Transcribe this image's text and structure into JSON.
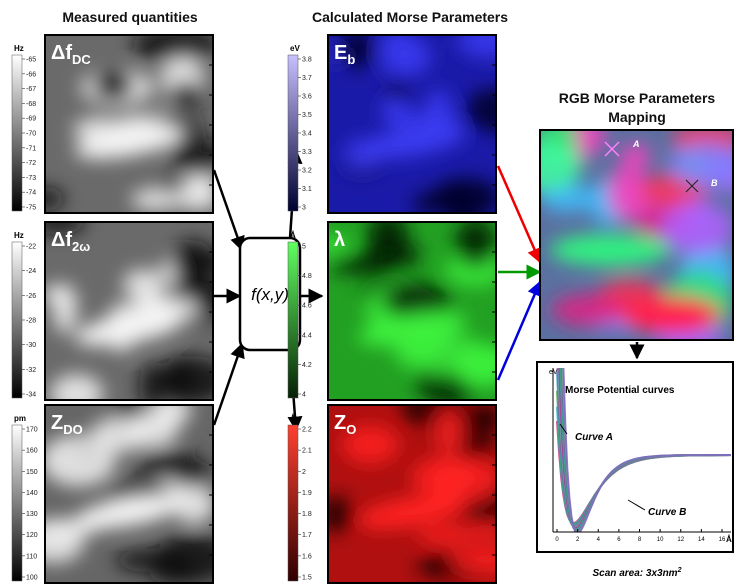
{
  "headings": {
    "measured": "Measured quantities",
    "calculated": "Calculated Morse Parameters",
    "rgb": [
      "RGB Morse Parameters",
      "Mapping"
    ]
  },
  "panels": [
    {
      "symbol": "Δf",
      "subscript": "DC",
      "unit": "Hz",
      "ticks": [
        "-65",
        "-66",
        "-67",
        "-68",
        "-69",
        "-70",
        "-71",
        "-72",
        "-73",
        "-74",
        "-75"
      ]
    },
    {
      "symbol": "Δf",
      "subscript": "2ω",
      "unit": "Hz",
      "ticks": [
        "-22",
        "-24",
        "-26",
        "-28",
        "-30",
        "-32",
        "-34"
      ]
    },
    {
      "symbol": "Z",
      "subscript": "DO",
      "unit": "pm",
      "ticks": [
        "170",
        "160",
        "150",
        "140",
        "130",
        "120",
        "110",
        "100"
      ]
    },
    {
      "symbol": "E",
      "subscript": "b",
      "unit": "eV",
      "ticks": [
        "3.8",
        "3.7",
        "3.6",
        "3.5",
        "3.4",
        "3.3",
        "3.2",
        "3.1",
        "3"
      ]
    },
    {
      "symbol": "λ",
      "unit": "Å",
      "ticks": [
        "5",
        "4.8",
        "4.6",
        "4.4",
        "4.2",
        "4"
      ]
    },
    {
      "symbol": "Z",
      "subscript": "O",
      "unit": "Å",
      "ticks": [
        "2.2",
        "2.1",
        "2",
        "1.9",
        "1.8",
        "1.7",
        "1.6",
        "1.5"
      ]
    }
  ],
  "function_box": "f(x,y)",
  "rgb_map": {
    "points": [
      "A",
      "B"
    ]
  },
  "morse_plot": {
    "title": "Morse Potential curves",
    "y_unit": "eV",
    "x_unit": "Å",
    "xticks": [
      "0",
      "2",
      "4",
      "6",
      "8",
      "10",
      "12",
      "14",
      "16"
    ],
    "curves": [
      "Curve A",
      "Curve B"
    ]
  },
  "footer": {
    "text": "Scan area: 3x3nm",
    "superscript": "2"
  }
}
